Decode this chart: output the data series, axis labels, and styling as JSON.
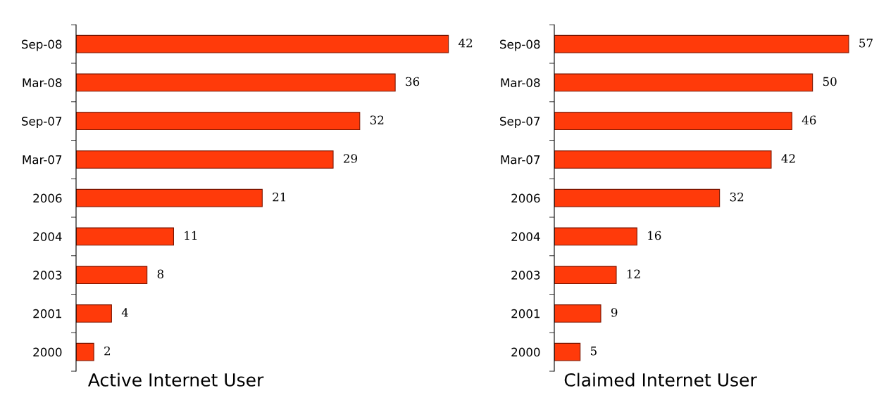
{
  "chart_data": [
    {
      "type": "bar",
      "orientation": "horizontal",
      "xlabel": "Active Internet User",
      "categories": [
        "Sep-08",
        "Mar-08",
        "Sep-07",
        "Mar-07",
        "2006",
        "2004",
        "2003",
        "2001",
        "2000"
      ],
      "values": [
        42,
        36,
        32,
        29,
        21,
        11,
        8,
        4,
        2
      ],
      "color": "#ff3a0a",
      "data_labels": true,
      "grid": false,
      "legend": false
    },
    {
      "type": "bar",
      "orientation": "horizontal",
      "xlabel": "Claimed Internet User",
      "categories": [
        "Sep-08",
        "Mar-08",
        "Sep-07",
        "Mar-07",
        "2006",
        "2004",
        "2003",
        "2001",
        "2000"
      ],
      "values": [
        57,
        50,
        46,
        42,
        32,
        16,
        12,
        9,
        5
      ],
      "color": "#ff3a0a",
      "data_labels": true,
      "grid": false,
      "legend": false
    }
  ]
}
